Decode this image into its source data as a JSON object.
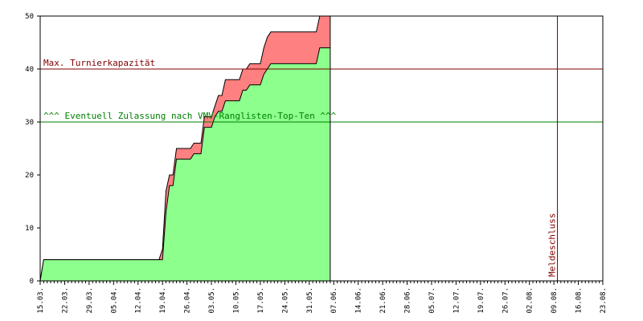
{
  "chart_data": {
    "type": "area",
    "x_axis": {
      "type": "date",
      "start": "2024-03-15",
      "end": "2024-08-23",
      "tick_labels": [
        "15.03.",
        "22.03.",
        "29.03.",
        "05.04.",
        "12.04.",
        "19.04.",
        "26.04.",
        "03.05.",
        "10.05.",
        "17.05.",
        "24.05.",
        "31.05.",
        "07.06.",
        "14.06.",
        "21.06.",
        "28.06.",
        "05.07.",
        "12.07.",
        "19.07.",
        "26.07.",
        "02.08.",
        "09.08.",
        "16.08.",
        "23.08."
      ],
      "label_interval_days": 7
    },
    "y_axis": {
      "range": [
        0,
        50
      ],
      "ticks": [
        0,
        10,
        20,
        30,
        40,
        50
      ]
    },
    "grid": false,
    "series": [
      {
        "color": "#ff8080",
        "points": [
          [
            "2024-03-15",
            0
          ],
          [
            "2024-03-16",
            4
          ],
          [
            "2024-04-18",
            4
          ],
          [
            "2024-04-19",
            6
          ],
          [
            "2024-04-20",
            17
          ],
          [
            "2024-04-21",
            20
          ],
          [
            "2024-04-22",
            20
          ],
          [
            "2024-04-23",
            25
          ],
          [
            "2024-04-27",
            25
          ],
          [
            "2024-04-28",
            26
          ],
          [
            "2024-04-30",
            26
          ],
          [
            "2024-05-01",
            31
          ],
          [
            "2024-05-03",
            31
          ],
          [
            "2024-05-04",
            33
          ],
          [
            "2024-05-05",
            35
          ],
          [
            "2024-05-06",
            35
          ],
          [
            "2024-05-07",
            38
          ],
          [
            "2024-05-11",
            38
          ],
          [
            "2024-05-12",
            40
          ],
          [
            "2024-05-13",
            40
          ],
          [
            "2024-05-14",
            41
          ],
          [
            "2024-05-17",
            41
          ],
          [
            "2024-05-18",
            44
          ],
          [
            "2024-05-19",
            46
          ],
          [
            "2024-05-20",
            47
          ],
          [
            "2024-06-02",
            47
          ],
          [
            "2024-06-03",
            50
          ],
          [
            "2024-06-06",
            50
          ]
        ]
      },
      {
        "color": "#8cff8c",
        "points": [
          [
            "2024-03-15",
            0
          ],
          [
            "2024-03-16",
            4
          ],
          [
            "2024-04-18",
            4
          ],
          [
            "2024-04-19",
            4
          ],
          [
            "2024-04-20",
            13
          ],
          [
            "2024-04-21",
            18
          ],
          [
            "2024-04-22",
            18
          ],
          [
            "2024-04-23",
            23
          ],
          [
            "2024-04-27",
            23
          ],
          [
            "2024-04-28",
            24
          ],
          [
            "2024-04-30",
            24
          ],
          [
            "2024-05-01",
            29
          ],
          [
            "2024-05-03",
            29
          ],
          [
            "2024-05-04",
            31
          ],
          [
            "2024-05-05",
            32
          ],
          [
            "2024-05-06",
            32
          ],
          [
            "2024-05-07",
            34
          ],
          [
            "2024-05-11",
            34
          ],
          [
            "2024-05-12",
            36
          ],
          [
            "2024-05-13",
            36
          ],
          [
            "2024-05-14",
            37
          ],
          [
            "2024-05-17",
            37
          ],
          [
            "2024-05-18",
            39
          ],
          [
            "2024-05-19",
            40
          ],
          [
            "2024-05-20",
            41
          ],
          [
            "2024-06-02",
            41
          ],
          [
            "2024-06-03",
            44
          ],
          [
            "2024-06-06",
            44
          ]
        ]
      }
    ],
    "reference_lines": [
      {
        "orientation": "horizontal",
        "value": 40,
        "label": "Max. Turnierkapazität",
        "color": "#800000"
      },
      {
        "orientation": "horizontal",
        "value": 30,
        "label": "^^^ Eventuell Zulassung nach VMV-Ranglisten-Top-Ten ^^^",
        "color": "#008000"
      },
      {
        "orientation": "vertical",
        "value": "2024-06-06",
        "label": "",
        "color": "#000000"
      },
      {
        "orientation": "vertical",
        "value": "2024-08-10",
        "label": "Meldeschluss",
        "color": "#800000"
      }
    ]
  }
}
